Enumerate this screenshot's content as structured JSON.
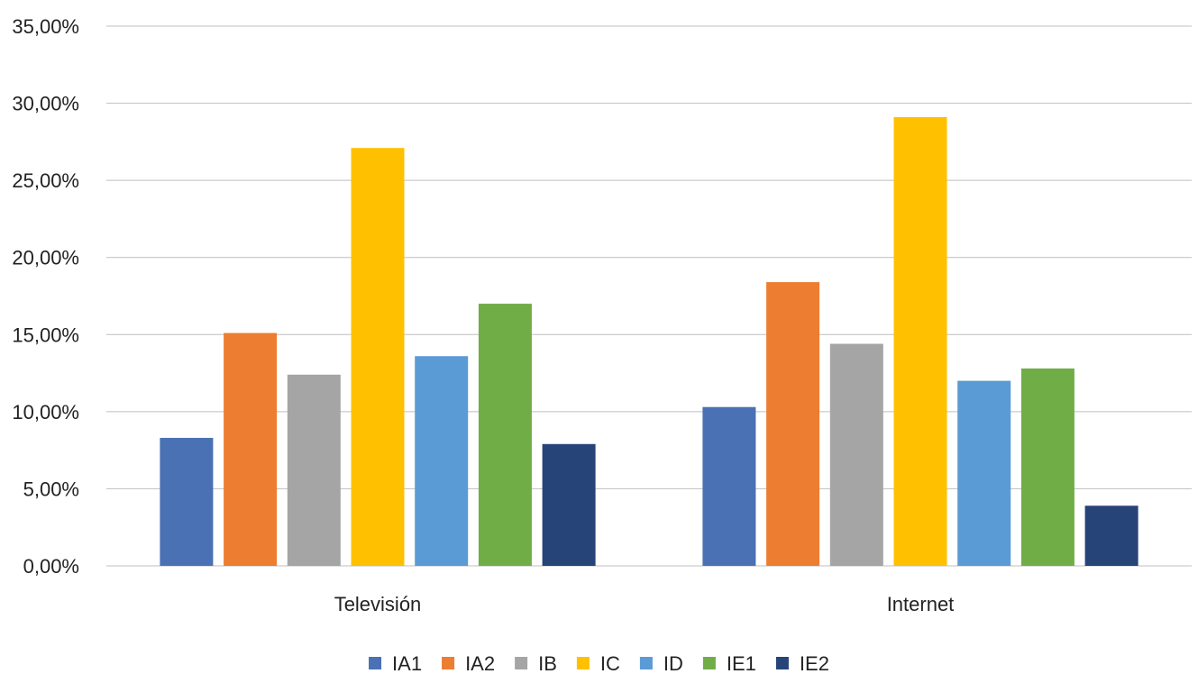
{
  "chart_data": {
    "type": "bar",
    "title": "",
    "xlabel": "",
    "ylabel": "",
    "categories": [
      "Televisión",
      "Internet"
    ],
    "series": [
      {
        "name": "IA1",
        "color": "#4a71b3",
        "values": [
          0.083,
          0.103
        ]
      },
      {
        "name": "IA2",
        "color": "#ed7d31",
        "values": [
          0.151,
          0.184
        ]
      },
      {
        "name": "IB",
        "color": "#a5a5a5",
        "values": [
          0.124,
          0.144
        ]
      },
      {
        "name": "IC",
        "color": "#ffc000",
        "values": [
          0.271,
          0.291
        ]
      },
      {
        "name": "ID",
        "color": "#5b9bd5",
        "values": [
          0.136,
          0.12
        ]
      },
      {
        "name": "IE1",
        "color": "#70ad47",
        "values": [
          0.17,
          0.128
        ]
      },
      {
        "name": "IE2",
        "color": "#264478",
        "values": [
          0.079,
          0.039
        ]
      }
    ],
    "ylim": [
      0,
      0.35
    ],
    "yticks": [
      0,
      0.05,
      0.1,
      0.15,
      0.2,
      0.25,
      0.3,
      0.35
    ],
    "ytick_labels": [
      "0,00%",
      "5,00%",
      "10,00%",
      "15,00%",
      "20,00%",
      "25,00%",
      "30,00%",
      "35,00%"
    ],
    "grid": true,
    "legend_position": "bottom"
  }
}
